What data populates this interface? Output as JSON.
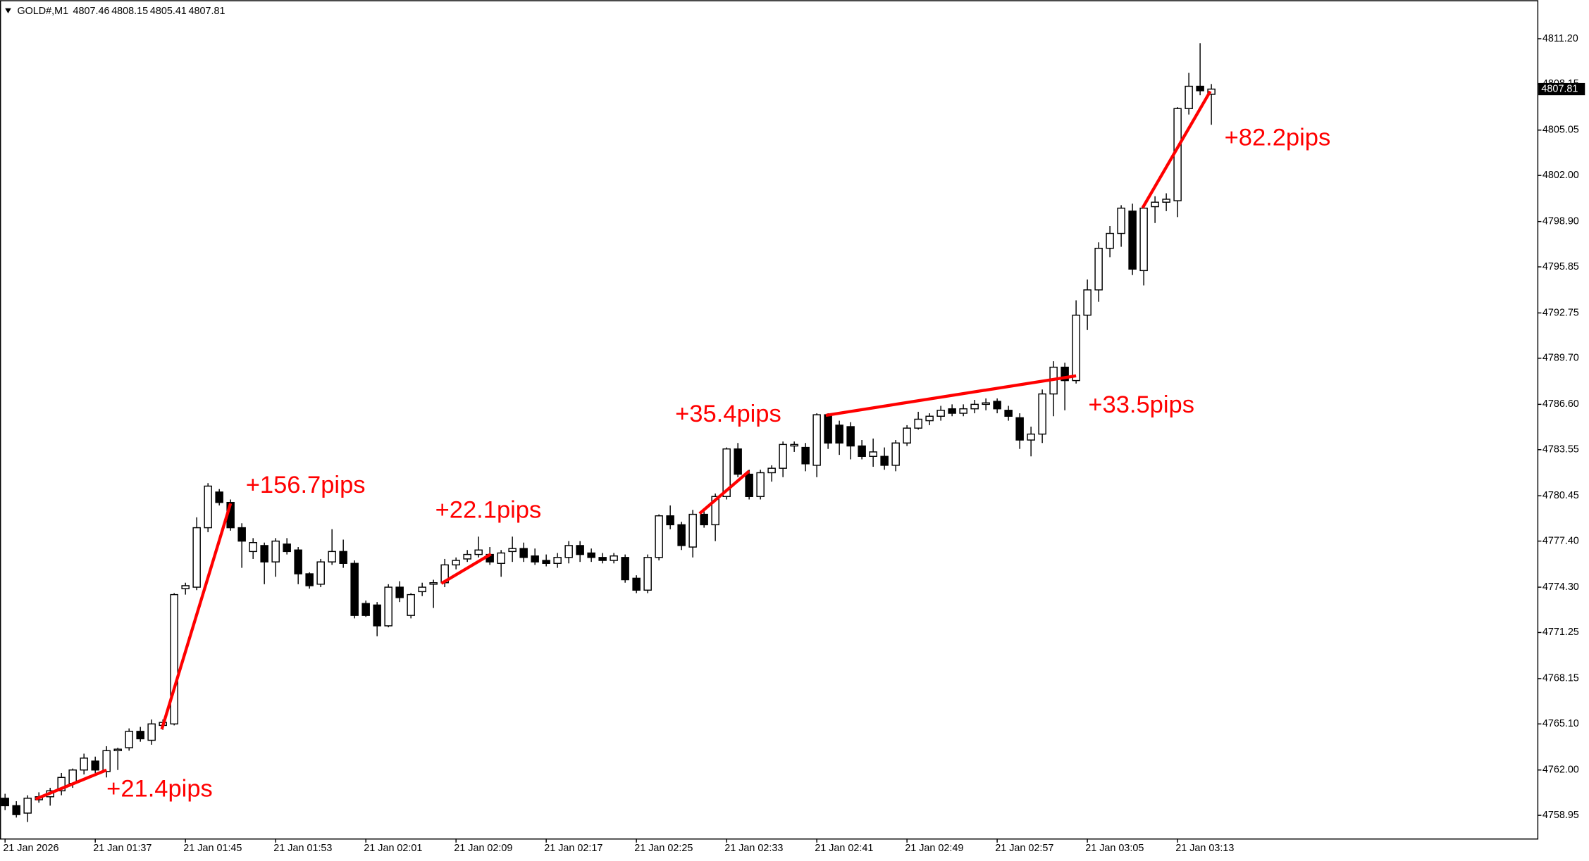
{
  "chart_data": {
    "type": "candlestick",
    "title": "GOLD#,M1",
    "header_ohlc": [
      4807.46,
      4808.15,
      4805.41,
      4807.81
    ],
    "current_price": 4807.81,
    "categories": [
      "21 Jan 2026",
      null,
      null,
      null,
      null,
      null,
      null,
      null,
      "21 Jan 01:37",
      null,
      null,
      null,
      null,
      null,
      null,
      null,
      "21 Jan 01:45",
      null,
      null,
      null,
      null,
      null,
      null,
      null,
      "21 Jan 01:53",
      null,
      null,
      null,
      null,
      null,
      null,
      null,
      "21 Jan 02:01",
      null,
      null,
      null,
      null,
      null,
      null,
      null,
      "21 Jan 02:09",
      null,
      null,
      null,
      null,
      null,
      null,
      null,
      "21 Jan 02:17",
      null,
      null,
      null,
      null,
      null,
      null,
      null,
      "21 Jan 02:25",
      null,
      null,
      null,
      null,
      null,
      null,
      null,
      "21 Jan 02:33",
      null,
      null,
      null,
      null,
      null,
      null,
      null,
      "21 Jan 02:41",
      null,
      null,
      null,
      null,
      null,
      null,
      null,
      "21 Jan 02:49",
      null,
      null,
      null,
      null,
      null,
      null,
      null,
      "21 Jan 02:57",
      null,
      null,
      null,
      null,
      null,
      null,
      null,
      "21 Jan 03:05",
      null,
      null,
      null,
      null,
      null,
      null,
      null,
      "21 Jan 03:13",
      null,
      null,
      null
    ],
    "open": [
      4760.1,
      4759.6,
      4759.1,
      4760.0,
      4760.2,
      4760.6,
      4761.1,
      4762.0,
      4762.6,
      4761.9,
      4763.3,
      4763.5,
      4764.6,
      4764.0,
      4765.0,
      4765.1,
      4774.2,
      4774.3,
      4778.3,
      4780.7,
      4780.0,
      4778.3,
      4776.7,
      4777.1,
      4776.0,
      4777.2,
      4776.8,
      4775.2,
      4774.5,
      4776.0,
      4776.7,
      4775.9,
      4773.2,
      4773.1,
      4771.7,
      4774.3,
      4772.4,
      4774.0,
      4774.5,
      4774.6,
      4775.8,
      4776.2,
      4776.5,
      4776.5,
      4775.9,
      4776.7,
      4776.9,
      4776.4,
      4776.1,
      4775.9,
      4776.3,
      4777.1,
      4776.6,
      4776.3,
      4776.1,
      4776.3,
      4774.9,
      4774.1,
      4776.3,
      4779.1,
      4778.5,
      4777.0,
      4779.2,
      4778.5,
      4780.4,
      4783.6,
      4781.9,
      4780.4,
      4782.0,
      4782.3,
      4783.8,
      4783.7,
      4782.5,
      4785.9,
      4785.2,
      4785.1,
      4783.8,
      4783.1,
      4783.1,
      4782.5,
      4784.0,
      4785.0,
      4785.5,
      4785.8,
      4786.3,
      4786.0,
      4786.3,
      4786.6,
      4786.8,
      4786.2,
      4785.7,
      4784.2,
      4784.6,
      4787.3,
      4789.1,
      4788.2,
      4792.6,
      4794.3,
      4797.1,
      4798.1,
      4799.6,
      4795.6,
      4799.9,
      4800.2,
      4800.3,
      4806.5,
      4808.0,
      4807.46
    ],
    "high": [
      4760.4,
      4759.9,
      4760.3,
      4760.5,
      4760.8,
      4761.8,
      4762.1,
      4763.1,
      4762.9,
      4763.6,
      4763.5,
      4764.8,
      4764.9,
      4765.4,
      4765.4,
      4773.9,
      4774.6,
      4779.0,
      4781.3,
      4780.9,
      4780.2,
      4778.6,
      4777.6,
      4777.3,
      4777.6,
      4777.6,
      4777.0,
      4775.3,
      4776.2,
      4778.2,
      4777.5,
      4776.1,
      4773.4,
      4773.3,
      4774.5,
      4774.7,
      4773.9,
      4774.6,
      4774.8,
      4776.2,
      4776.3,
      4776.8,
      4777.7,
      4777.0,
      4776.8,
      4777.7,
      4777.3,
      4776.9,
      4776.5,
      4776.6,
      4777.4,
      4777.4,
      4776.9,
      4776.6,
      4776.6,
      4776.5,
      4775.1,
      4776.5,
      4779.2,
      4779.8,
      4778.7,
      4779.5,
      4779.4,
      4780.6,
      4783.7,
      4784.0,
      4782.2,
      4782.2,
      4782.5,
      4784.1,
      4784.1,
      4784.0,
      4786.0,
      4786.0,
      4785.5,
      4785.4,
      4784.2,
      4784.3,
      4783.7,
      4784.2,
      4785.2,
      4786.1,
      4786.0,
      4786.5,
      4786.6,
      4786.6,
      4786.9,
      4787.0,
      4787.0,
      4786.5,
      4786.0,
      4785.1,
      4787.6,
      4789.5,
      4789.4,
      4793.6,
      4795.0,
      4797.5,
      4798.6,
      4800.0,
      4800.1,
      4800.0,
      4800.6,
      4800.8,
      4806.6,
      4808.9,
      4810.9,
      4808.15
    ],
    "low": [
      4759.3,
      4758.8,
      4758.5,
      4759.8,
      4759.6,
      4760.3,
      4760.8,
      4761.7,
      4761.8,
      4761.5,
      4762.0,
      4763.3,
      4763.9,
      4763.7,
      4764.7,
      4765.0,
      4773.8,
      4774.1,
      4778.0,
      4779.8,
      4778.1,
      4775.6,
      4776.2,
      4774.5,
      4775.0,
      4776.5,
      4774.5,
      4774.2,
      4774.3,
      4775.8,
      4775.6,
      4772.2,
      4772.3,
      4771.0,
      4771.6,
      4773.3,
      4772.2,
      4773.7,
      4772.9,
      4774.3,
      4775.5,
      4776.0,
      4776.3,
      4775.8,
      4775.0,
      4776.0,
      4776.0,
      4775.8,
      4775.7,
      4775.6,
      4775.9,
      4776.0,
      4776.0,
      4775.9,
      4775.9,
      4774.6,
      4773.9,
      4773.9,
      4776.1,
      4778.2,
      4776.8,
      4776.3,
      4778.3,
      4777.4,
      4780.2,
      4781.7,
      4780.2,
      4780.2,
      4781.4,
      4781.7,
      4783.4,
      4782.1,
      4781.7,
      4783.6,
      4783.2,
      4782.9,
      4782.9,
      4782.4,
      4782.2,
      4782.1,
      4783.8,
      4784.9,
      4785.2,
      4785.5,
      4785.8,
      4785.8,
      4786.0,
      4786.2,
      4786.0,
      4785.5,
      4783.6,
      4783.1,
      4784.0,
      4785.8,
      4786.2,
      4788.0,
      4791.6,
      4793.5,
      4796.5,
      4797.2,
      4795.3,
      4794.6,
      4798.8,
      4799.6,
      4799.2,
      4806.1,
      4807.4,
      4805.41
    ],
    "close": [
      4759.6,
      4759.0,
      4760.1,
      4760.2,
      4760.6,
      4761.5,
      4762.0,
      4762.8,
      4762.0,
      4763.3,
      4763.4,
      4764.6,
      4764.1,
      4765.1,
      4765.2,
      4773.8,
      4774.4,
      4778.3,
      4781.1,
      4780.0,
      4778.3,
      4777.4,
      4777.3,
      4776.0,
      4777.4,
      4776.7,
      4775.2,
      4774.4,
      4776.0,
      4776.7,
      4775.9,
      4772.4,
      4772.4,
      4771.7,
      4774.3,
      4773.6,
      4773.8,
      4774.3,
      4774.6,
      4775.8,
      4776.1,
      4776.5,
      4776.8,
      4776.0,
      4776.6,
      4776.9,
      4776.3,
      4776.0,
      4775.9,
      4776.3,
      4777.1,
      4776.5,
      4776.3,
      4776.1,
      4776.4,
      4774.8,
      4774.1,
      4776.3,
      4779.1,
      4778.5,
      4777.1,
      4779.2,
      4778.5,
      4780.4,
      4783.6,
      4781.9,
      4780.4,
      4782.0,
      4782.3,
      4783.9,
      4783.9,
      4782.6,
      4785.9,
      4784.0,
      4784.0,
      4783.8,
      4783.1,
      4783.4,
      4782.5,
      4784.0,
      4785.0,
      4785.6,
      4785.8,
      4786.2,
      4786.0,
      4786.3,
      4786.6,
      4786.7,
      4786.3,
      4785.8,
      4784.2,
      4784.6,
      4787.3,
      4789.1,
      4788.2,
      4792.6,
      4794.3,
      4797.1,
      4798.1,
      4799.8,
      4795.7,
      4799.8,
      4800.2,
      4800.4,
      4806.5,
      4808.0,
      4807.7,
      4807.81
    ],
    "up_color": "#ffffff",
    "down_color": "#000000",
    "ylim": [
      4757.39,
      4813.79
    ],
    "yticks": [
      {
        "value": 4811.2,
        "label": "4811.20"
      },
      {
        "value": 4808.15,
        "label": "4808.15"
      },
      {
        "value": 4805.05,
        "label": "4805.05"
      },
      {
        "value": 4802.0,
        "label": "4802.00"
      },
      {
        "value": 4798.9,
        "label": "4798.90"
      },
      {
        "value": 4795.85,
        "label": "4795.85"
      },
      {
        "value": 4792.75,
        "label": "4792.75"
      },
      {
        "value": 4789.7,
        "label": "4789.70"
      },
      {
        "value": 4786.6,
        "label": "4786.60"
      },
      {
        "value": 4783.55,
        "label": "4783.55"
      },
      {
        "value": 4780.45,
        "label": "4780.45"
      },
      {
        "value": 4777.4,
        "label": "4777.40"
      },
      {
        "value": 4774.3,
        "label": "4774.30"
      },
      {
        "value": 4771.25,
        "label": "4771.25"
      },
      {
        "value": 4768.15,
        "label": "4768.15"
      },
      {
        "value": 4765.1,
        "label": "4765.10"
      },
      {
        "value": 4762.0,
        "label": "4762.00"
      },
      {
        "value": 4758.95,
        "label": "4758.95"
      }
    ],
    "grid": false,
    "annotation_color": "#ff0000",
    "annotations": [
      {
        "label": "+21.4pips",
        "x0": 2.7,
        "y0": 4760.04,
        "x1": 9,
        "y1": 4762.0
      },
      {
        "label": "+156.7pips",
        "x0": 13.9,
        "y0": 4764.74,
        "x1": 20,
        "y1": 4779.93
      },
      {
        "label": "+22.1pips",
        "x0": 38.7,
        "y0": 4774.55,
        "x1": 43.1,
        "y1": 4776.53
      },
      {
        "label": "+35.4pips",
        "x0": 61.6,
        "y0": 4779.25,
        "x1": 66,
        "y1": 4782.11
      },
      {
        "label": "+33.5pips",
        "x0": 72.8,
        "y0": 4785.86,
        "x1": 95,
        "y1": 4788.52
      },
      {
        "label": "+82.2pips",
        "x0": 100.9,
        "y0": 4799.82,
        "x1": 106.9,
        "y1": 4807.66
      }
    ]
  }
}
